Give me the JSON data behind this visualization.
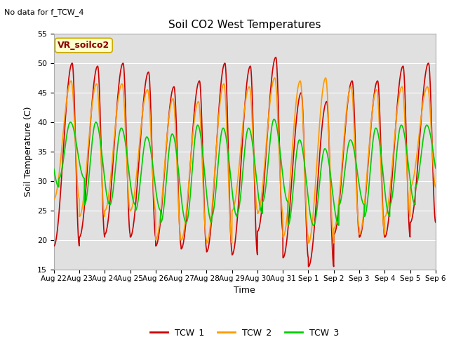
{
  "title": "Soil CO2 West Temperatures",
  "no_data_text": "No data for f_TCW_4",
  "vr_label": "VR_soilco2",
  "xlabel": "Time",
  "ylabel": "Soil Temperature (C)",
  "ylim": [
    15,
    55
  ],
  "yticks": [
    15,
    20,
    25,
    30,
    35,
    40,
    45,
    50,
    55
  ],
  "date_labels": [
    "Aug 22",
    "Aug 23",
    "Aug 24",
    "Aug 25",
    "Aug 26",
    "Aug 27",
    "Aug 28",
    "Aug 29",
    "Aug 30",
    "Aug 31",
    "Sep 1",
    "Sep 2",
    "Sep 3",
    "Sep 4",
    "Sep 5",
    "Sep 6"
  ],
  "color_TCW1": "#cc0000",
  "color_TCW2": "#ff9900",
  "color_TCW3": "#00cc00",
  "bg_color": "#e0e0e0",
  "legend_labels": [
    "TCW_1",
    "TCW_2",
    "TCW_3"
  ],
  "num_days": 15,
  "TCW1_max": [
    50.0,
    49.5,
    50.0,
    48.5,
    46.0,
    47.0,
    50.0,
    49.5,
    51.0,
    45.0,
    43.5,
    47.0,
    47.0,
    49.5,
    50.0
  ],
  "TCW1_min": [
    19.0,
    20.5,
    21.0,
    20.5,
    19.0,
    18.5,
    18.0,
    17.5,
    21.5,
    17.0,
    15.5,
    21.0,
    20.5,
    20.5,
    23.0
  ],
  "TCW2_max": [
    47.0,
    46.5,
    46.5,
    45.5,
    44.0,
    43.5,
    46.5,
    46.0,
    47.5,
    47.0,
    47.5,
    46.0,
    45.5,
    46.0,
    46.0
  ],
  "TCW2_min": [
    27.0,
    24.0,
    25.0,
    25.0,
    20.0,
    20.0,
    19.5,
    25.0,
    24.5,
    20.5,
    19.5,
    22.0,
    21.0,
    24.0,
    29.0
  ],
  "TCW3_max": [
    40.0,
    40.0,
    39.0,
    37.5,
    38.0,
    39.5,
    39.0,
    39.0,
    40.5,
    37.0,
    35.5,
    37.0,
    39.0,
    39.5,
    39.5
  ],
  "TCW3_min": [
    30.5,
    26.0,
    26.0,
    25.0,
    23.0,
    23.0,
    24.0,
    24.5,
    26.5,
    22.5,
    22.5,
    26.0,
    24.0,
    26.0,
    29.0
  ],
  "TCW1_phase": 0.72,
  "TCW2_phase": 0.68,
  "TCW3_phase": 0.45,
  "peak_sharpness": 3.0
}
